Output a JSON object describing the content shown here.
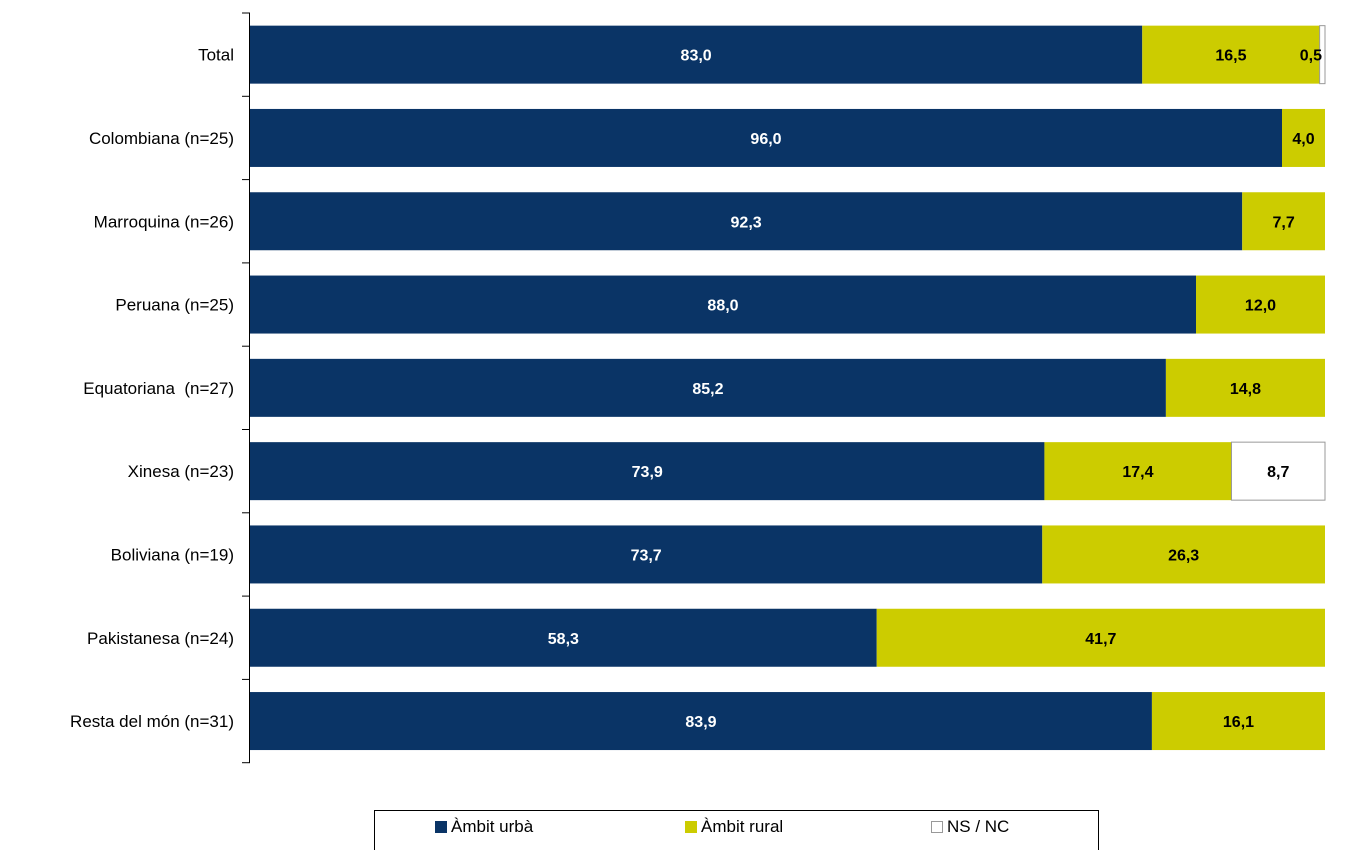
{
  "chart_data": {
    "type": "bar",
    "orientation": "horizontal",
    "stacked": true,
    "categories": [
      "Total",
      "Colombiana (n=25)",
      "Marroquina (n=26)",
      "Peruana (n=25)",
      "Equatoriana  (n=27)",
      "Xinesa (n=23)",
      "Boliviana (n=19)",
      "Pakistanesa (n=24)",
      "Resta del món (n=31)"
    ],
    "series": [
      {
        "name": "Àmbit urbà",
        "color": "#0a3466",
        "label_color": "#ffffff",
        "values": [
          83.0,
          96.0,
          92.3,
          88.0,
          85.2,
          73.9,
          73.7,
          58.3,
          83.9
        ],
        "labels": [
          "83,0",
          "96,0",
          "92,3",
          "88,0",
          "85,2",
          "73,9",
          "73,7",
          "58,3",
          "83,9"
        ]
      },
      {
        "name": "Àmbit rural",
        "color": "#cccc00",
        "label_color": "#000000",
        "values": [
          16.5,
          4.0,
          7.7,
          12.0,
          14.8,
          17.4,
          26.3,
          41.7,
          16.1
        ],
        "labels": [
          "16,5",
          "4,0",
          "7,7",
          "12,0",
          "14,8",
          "17,4",
          "26,3",
          "41,7",
          "16,1"
        ]
      },
      {
        "name": "NS / NC",
        "color": "#ffffff",
        "label_color": "#000000",
        "values": [
          0.5,
          0,
          0,
          0,
          0,
          8.7,
          0,
          0,
          0
        ],
        "labels": [
          "0,5",
          "",
          "",
          "",
          "",
          "8,7",
          "",
          "",
          ""
        ]
      }
    ],
    "xlim": [
      0,
      100
    ],
    "grid": false,
    "legend_position": "bottom"
  }
}
